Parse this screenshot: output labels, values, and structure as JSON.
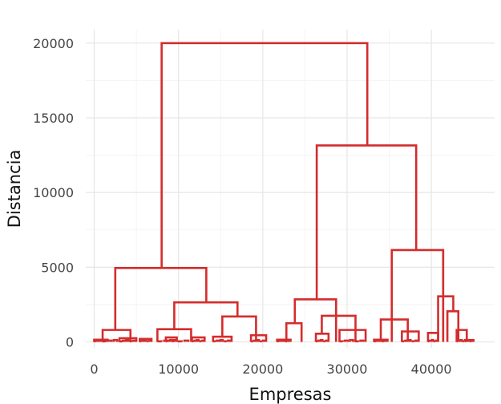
{
  "chart_data": {
    "type": "dendrogram",
    "xlabel": "Empresas",
    "ylabel": "Distancia",
    "xlim": [
      -1000,
      47500
    ],
    "ylim": [
      -400,
      20900
    ],
    "x_ticks": [
      0,
      10000,
      20000,
      30000,
      40000
    ],
    "x_tick_labels": [
      "0",
      "10000",
      "20000",
      "30000",
      "40000"
    ],
    "y_ticks": [
      0,
      5000,
      10000,
      15000,
      20000
    ],
    "y_tick_labels": [
      "0",
      "5000",
      "10000",
      "15000",
      "20000"
    ],
    "grid": true,
    "line_color": "#d42c2c",
    "merges": [
      {
        "height": 20000,
        "left_x": 8000,
        "right_x": 32400
      },
      {
        "height": 13150,
        "left_x": 26400,
        "right_x": 38200
      },
      {
        "height": 6150,
        "left_x": 35300,
        "right_x": 41400
      },
      {
        "height": 4950,
        "left_x": 2500,
        "right_x": 13300
      },
      {
        "height": 3050,
        "left_x": 40800,
        "right_x": 42600
      },
      {
        "height": 2650,
        "left_x": 9500,
        "right_x": 17000
      },
      {
        "height": 2850,
        "left_x": 23800,
        "right_x": 28700
      },
      {
        "height": 2050,
        "left_x": 41900,
        "right_x": 43200
      },
      {
        "height": 1750,
        "left_x": 27000,
        "right_x": 31000
      },
      {
        "height": 1700,
        "left_x": 15200,
        "right_x": 19200
      },
      {
        "height": 1500,
        "left_x": 34000,
        "right_x": 37200
      },
      {
        "height": 1250,
        "left_x": 22800,
        "right_x": 24600
      },
      {
        "height": 800,
        "left_x": 1000,
        "right_x": 4300
      },
      {
        "height": 850,
        "left_x": 7500,
        "right_x": 11500
      },
      {
        "height": 800,
        "left_x": 29100,
        "right_x": 32200
      },
      {
        "height": 800,
        "left_x": 43000,
        "right_x": 44200
      },
      {
        "height": 700,
        "left_x": 36500,
        "right_x": 38500
      },
      {
        "height": 600,
        "left_x": 39600,
        "right_x": 40800
      },
      {
        "height": 550,
        "left_x": 26300,
        "right_x": 27800
      },
      {
        "height": 450,
        "left_x": 18600,
        "right_x": 20400
      },
      {
        "height": 350,
        "left_x": 14100,
        "right_x": 16300
      },
      {
        "height": 300,
        "left_x": 8500,
        "right_x": 9800
      },
      {
        "height": 300,
        "left_x": 11600,
        "right_x": 13100
      },
      {
        "height": 250,
        "left_x": 3000,
        "right_x": 5000
      },
      {
        "height": 200,
        "left_x": 5400,
        "right_x": 6800
      },
      {
        "height": 150,
        "left_x": 0,
        "right_x": 1600
      },
      {
        "height": 150,
        "left_x": 21700,
        "right_x": 23300
      },
      {
        "height": 150,
        "left_x": 33200,
        "right_x": 34800
      },
      {
        "height": 120,
        "left_x": 44000,
        "right_x": 45000
      }
    ]
  }
}
